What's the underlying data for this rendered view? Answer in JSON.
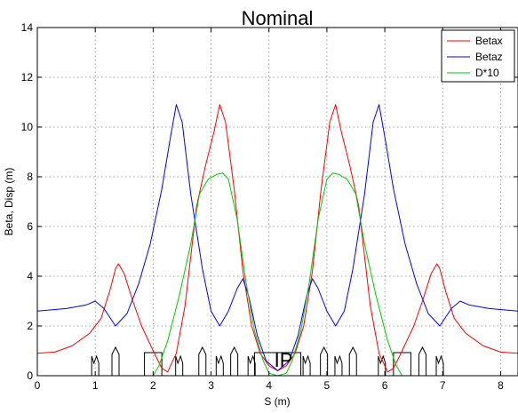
{
  "chart_data": {
    "type": "line",
    "title": "Nominal",
    "xlabel": "S (m)",
    "ylabel": "Beta, Disp (m)",
    "xlim": [
      0,
      8.3
    ],
    "ylim": [
      0,
      14
    ],
    "xticks": [
      0,
      1,
      2,
      3,
      4,
      5,
      6,
      7,
      8
    ],
    "yticks": [
      0,
      2,
      4,
      6,
      8,
      10,
      12,
      14
    ],
    "grid": true,
    "legend_position": "top-right",
    "annotation": "IP",
    "series": [
      {
        "name": "Betax",
        "color": "#ff0000",
        "points": [
          [
            0,
            0.9
          ],
          [
            0.3,
            0.95
          ],
          [
            0.6,
            1.2
          ],
          [
            0.9,
            1.7
          ],
          [
            1.1,
            2.3
          ],
          [
            1.25,
            3.4
          ],
          [
            1.35,
            4.3
          ],
          [
            1.4,
            4.5
          ],
          [
            1.5,
            4.1
          ],
          [
            1.65,
            3.0
          ],
          [
            1.8,
            2.0
          ],
          [
            2.0,
            1.0
          ],
          [
            2.15,
            0.3
          ],
          [
            2.25,
            0.15
          ],
          [
            2.4,
            0.9
          ],
          [
            2.55,
            2.8
          ],
          [
            2.75,
            6.8
          ],
          [
            2.9,
            8.4
          ],
          [
            3.05,
            9.8
          ],
          [
            3.15,
            10.9
          ],
          [
            3.25,
            10.2
          ],
          [
            3.4,
            7.5
          ],
          [
            3.55,
            4.2
          ],
          [
            3.7,
            2.0
          ],
          [
            3.85,
            0.9
          ],
          [
            4.0,
            0.4
          ],
          [
            4.15,
            0.2
          ],
          [
            4.3,
            0.4
          ],
          [
            4.45,
            0.9
          ],
          [
            4.6,
            2.0
          ],
          [
            4.75,
            4.2
          ],
          [
            4.9,
            7.5
          ],
          [
            5.05,
            10.2
          ],
          [
            5.15,
            10.9
          ],
          [
            5.25,
            9.8
          ],
          [
            5.4,
            8.4
          ],
          [
            5.55,
            6.8
          ],
          [
            5.75,
            2.8
          ],
          [
            5.9,
            0.9
          ],
          [
            6.05,
            0.15
          ],
          [
            6.15,
            0.3
          ],
          [
            6.3,
            1.0
          ],
          [
            6.5,
            2.0
          ],
          [
            6.65,
            3.0
          ],
          [
            6.8,
            4.1
          ],
          [
            6.9,
            4.5
          ],
          [
            6.95,
            4.3
          ],
          [
            7.05,
            3.4
          ],
          [
            7.2,
            2.3
          ],
          [
            7.4,
            1.7
          ],
          [
            7.7,
            1.2
          ],
          [
            8.0,
            0.95
          ],
          [
            8.3,
            0.9
          ]
        ]
      },
      {
        "name": "Betaz",
        "color": "#0000ff",
        "points": [
          [
            0,
            2.6
          ],
          [
            0.5,
            2.7
          ],
          [
            0.85,
            2.85
          ],
          [
            1.0,
            3.0
          ],
          [
            1.15,
            2.7
          ],
          [
            1.35,
            2.0
          ],
          [
            1.55,
            2.5
          ],
          [
            1.75,
            3.7
          ],
          [
            1.95,
            5.3
          ],
          [
            2.15,
            7.5
          ],
          [
            2.3,
            9.6
          ],
          [
            2.4,
            10.9
          ],
          [
            2.5,
            10.2
          ],
          [
            2.65,
            7.3
          ],
          [
            2.85,
            4.3
          ],
          [
            3.0,
            2.6
          ],
          [
            3.15,
            2.0
          ],
          [
            3.3,
            2.6
          ],
          [
            3.45,
            3.5
          ],
          [
            3.55,
            3.9
          ],
          [
            3.65,
            3.2
          ],
          [
            3.8,
            1.6
          ],
          [
            3.95,
            0.6
          ],
          [
            4.15,
            0.2
          ],
          [
            4.35,
            0.6
          ],
          [
            4.5,
            1.6
          ],
          [
            4.65,
            3.2
          ],
          [
            4.75,
            3.9
          ],
          [
            4.85,
            3.5
          ],
          [
            5.0,
            2.6
          ],
          [
            5.15,
            2.0
          ],
          [
            5.3,
            2.6
          ],
          [
            5.45,
            4.3
          ],
          [
            5.65,
            7.3
          ],
          [
            5.8,
            10.2
          ],
          [
            5.9,
            10.9
          ],
          [
            6.0,
            9.6
          ],
          [
            6.15,
            7.5
          ],
          [
            6.35,
            5.3
          ],
          [
            6.55,
            3.7
          ],
          [
            6.75,
            2.5
          ],
          [
            6.95,
            2.0
          ],
          [
            7.15,
            2.7
          ],
          [
            7.3,
            3.0
          ],
          [
            7.45,
            2.85
          ],
          [
            7.8,
            2.7
          ],
          [
            8.3,
            2.6
          ]
        ]
      },
      {
        "name": "D*10",
        "color": "#00cc00",
        "points": [
          [
            2.0,
            0.0
          ],
          [
            2.1,
            0.4
          ],
          [
            2.25,
            1.4
          ],
          [
            2.45,
            3.2
          ],
          [
            2.65,
            5.3
          ],
          [
            2.8,
            7.3
          ],
          [
            2.95,
            7.9
          ],
          [
            3.1,
            8.1
          ],
          [
            3.2,
            8.15
          ],
          [
            3.3,
            7.9
          ],
          [
            3.45,
            6.3
          ],
          [
            3.6,
            3.8
          ],
          [
            3.75,
            1.8
          ],
          [
            3.9,
            0.6
          ],
          [
            4.0,
            0.1
          ],
          [
            4.15,
            0.0
          ],
          [
            4.3,
            0.1
          ],
          [
            4.4,
            0.6
          ],
          [
            4.55,
            1.8
          ],
          [
            4.7,
            3.8
          ],
          [
            4.85,
            6.3
          ],
          [
            5.0,
            7.9
          ],
          [
            5.1,
            8.15
          ],
          [
            5.2,
            8.1
          ],
          [
            5.35,
            7.9
          ],
          [
            5.5,
            7.3
          ],
          [
            5.65,
            5.3
          ],
          [
            5.85,
            3.2
          ],
          [
            6.05,
            1.4
          ],
          [
            6.2,
            0.4
          ],
          [
            6.3,
            0.0
          ]
        ]
      }
    ]
  }
}
